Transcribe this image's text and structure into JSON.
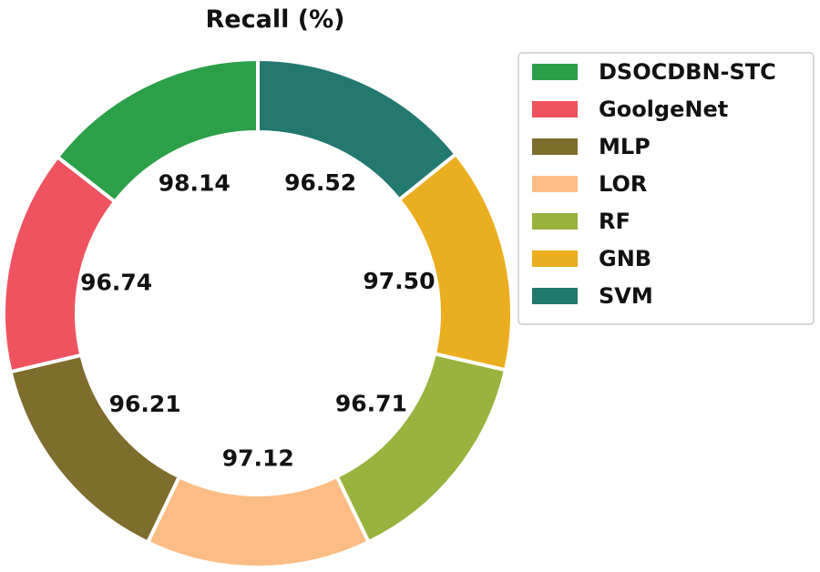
{
  "chart_data": {
    "type": "pie",
    "style": "donut",
    "title": "Recall (%)",
    "legend_position": "right",
    "categories": [
      "DSOCDBN-STC",
      "GoolgeNet",
      "MLP",
      "LOR",
      "RF",
      "GNB",
      "SVM"
    ],
    "values": [
      98.14,
      96.74,
      96.21,
      97.12,
      96.71,
      97.5,
      96.52
    ],
    "value_labels": [
      "98.14",
      "96.74",
      "96.21",
      "97.12",
      "96.71",
      "97.50",
      "96.52"
    ],
    "colors": [
      "#2ca049",
      "#ef5360",
      "#7f6d2e",
      "#fbbd84",
      "#98b33e",
      "#ebae20",
      "#237870"
    ]
  }
}
